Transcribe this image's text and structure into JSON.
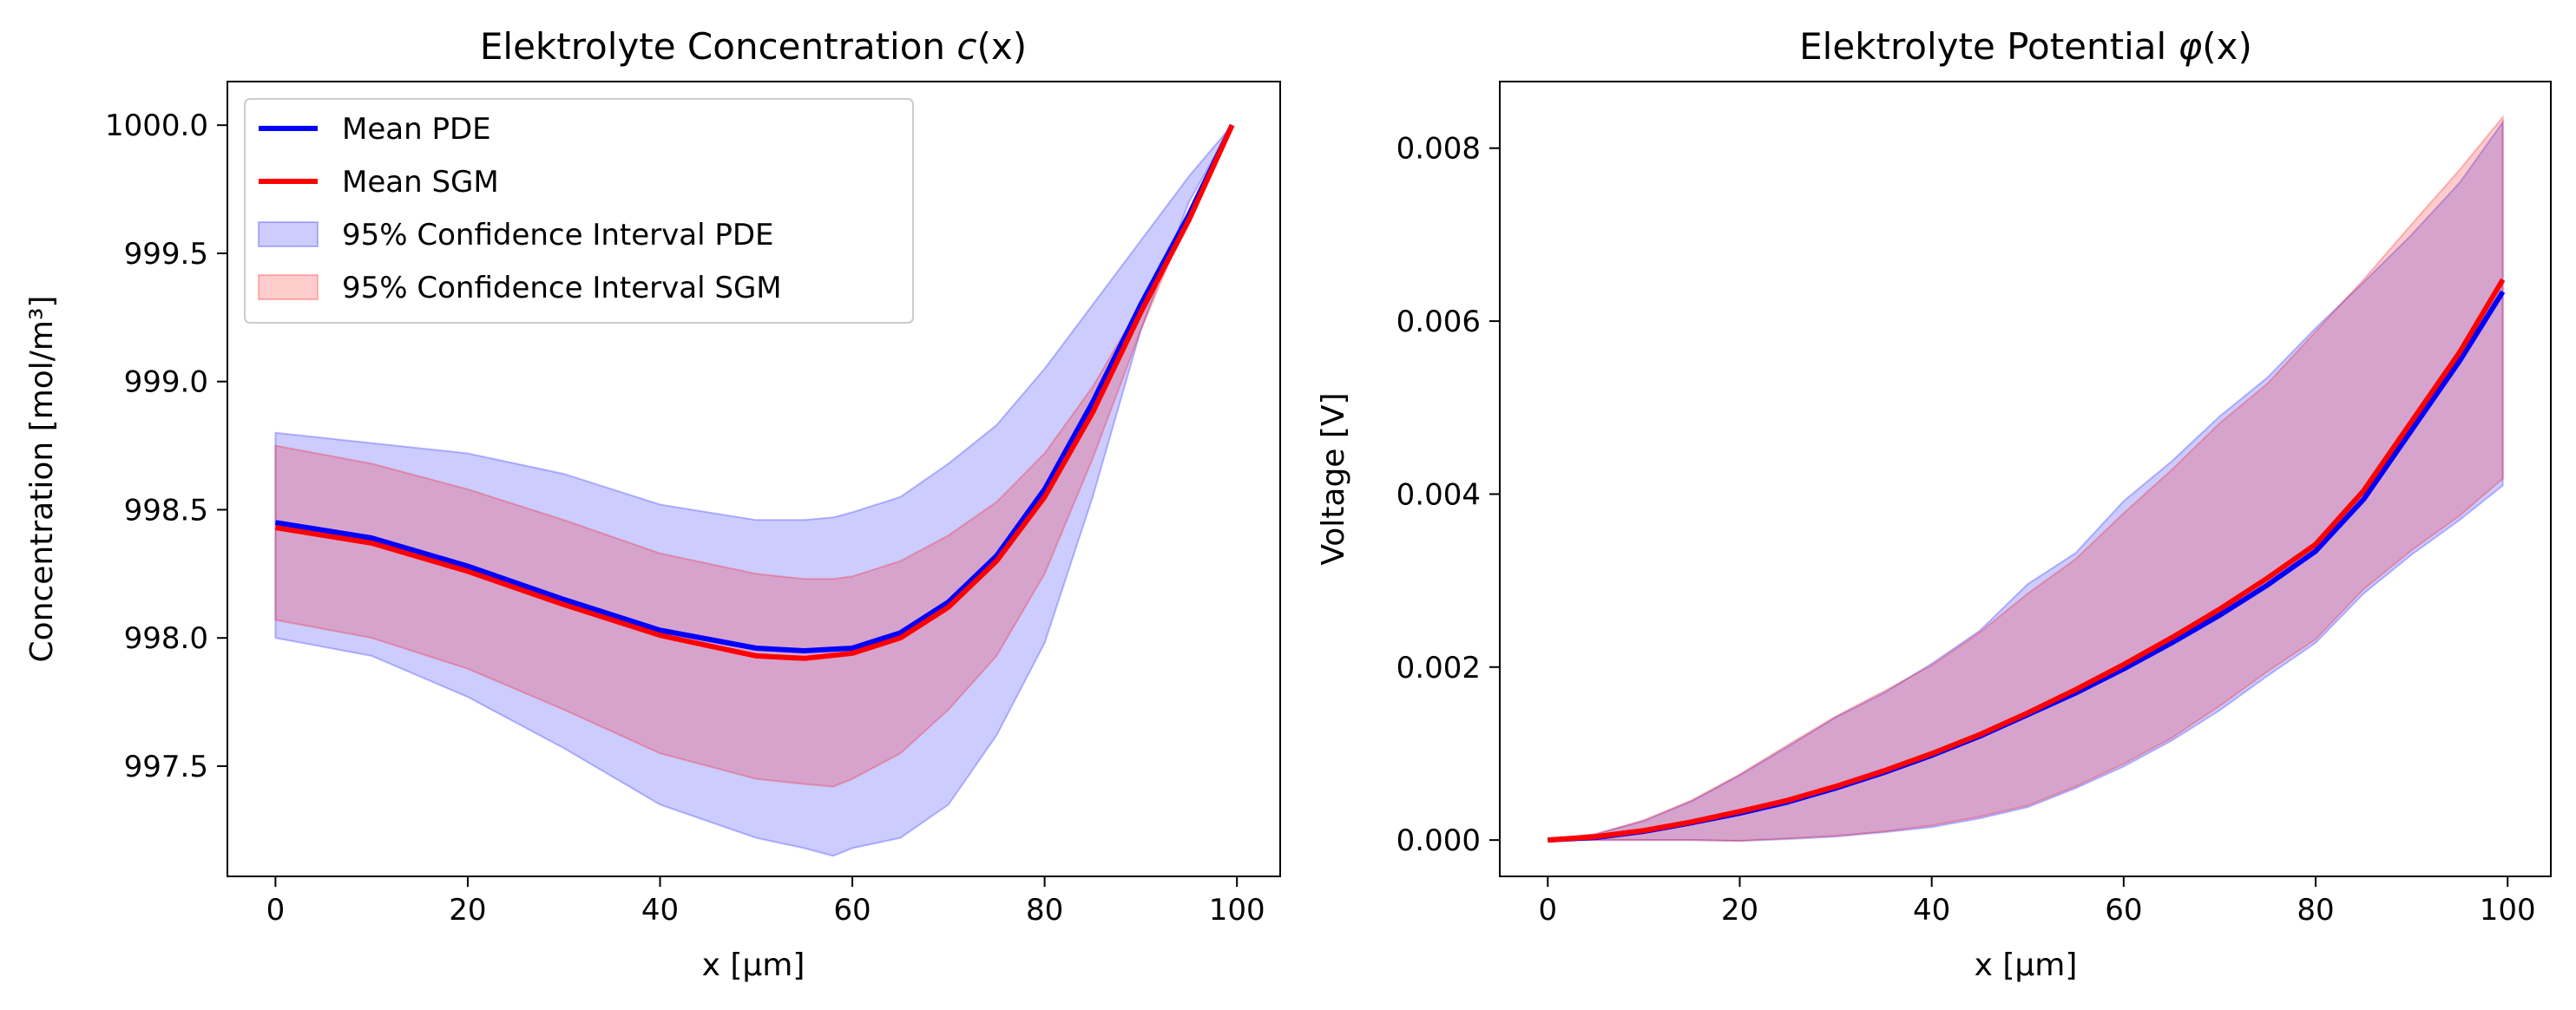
{
  "colors": {
    "pde": "#0000ff",
    "sgm": "#ff0000",
    "pde_band": "#0000ff",
    "sgm_band": "#ff0000"
  },
  "chart_data": [
    {
      "type": "line",
      "title_text": "Elektrolyte Concentration ",
      "title_symbol": "c",
      "title_arg": "(x)",
      "xlabel": "x [µm]",
      "ylabel": "Concentration [mol/m³]",
      "xlim": [
        -5,
        104.5
      ],
      "ylim": [
        997.07,
        1000.17
      ],
      "xticks": [
        0,
        20,
        40,
        60,
        80,
        100
      ],
      "yticks": [
        997.5,
        998.0,
        998.5,
        999.0,
        999.5,
        1000.0
      ],
      "ytick_labels": [
        "997.5",
        "998.0",
        "998.5",
        "999.0",
        "999.5",
        "1000.0"
      ],
      "legend_position": "upper-left",
      "series": [
        {
          "name": "Mean PDE",
          "kind": "line",
          "x": [
            0,
            10,
            20,
            30,
            40,
            50,
            55,
            60,
            65,
            70,
            75,
            80,
            85,
            90,
            95,
            99.5
          ],
          "y": [
            998.45,
            998.39,
            998.28,
            998.15,
            998.03,
            997.96,
            997.95,
            997.96,
            998.02,
            998.14,
            998.32,
            998.58,
            998.92,
            999.3,
            999.65,
            1000.0
          ]
        },
        {
          "name": "Mean SGM",
          "kind": "line",
          "x": [
            0,
            10,
            20,
            30,
            40,
            50,
            55,
            60,
            65,
            70,
            75,
            80,
            85,
            90,
            95,
            99.5
          ],
          "y": [
            998.43,
            998.37,
            998.26,
            998.13,
            998.01,
            997.93,
            997.92,
            997.94,
            998.0,
            998.12,
            998.3,
            998.55,
            998.88,
            999.27,
            999.63,
            1000.0
          ]
        },
        {
          "name": "95% Confidence Interval PDE",
          "kind": "band",
          "x": [
            0,
            10,
            20,
            30,
            40,
            50,
            55,
            58,
            60,
            65,
            70,
            75,
            80,
            85,
            90,
            95,
            99.5
          ],
          "lower": [
            998.0,
            997.93,
            997.77,
            997.57,
            997.35,
            997.22,
            997.18,
            997.15,
            997.18,
            997.22,
            997.35,
            997.62,
            997.98,
            998.55,
            999.2,
            999.7,
            1000.0
          ],
          "upper": [
            998.8,
            998.76,
            998.72,
            998.64,
            998.52,
            998.46,
            998.46,
            998.47,
            998.49,
            998.55,
            998.68,
            998.83,
            999.05,
            999.3,
            999.55,
            999.8,
            1000.0
          ]
        },
        {
          "name": "95% Confidence Interval SGM",
          "kind": "band",
          "x": [
            0,
            10,
            20,
            30,
            40,
            50,
            55,
            58,
            60,
            65,
            70,
            75,
            80,
            85,
            90,
            95,
            99.5
          ],
          "lower": [
            998.07,
            998.0,
            997.88,
            997.72,
            997.55,
            997.45,
            997.43,
            997.42,
            997.45,
            997.55,
            997.72,
            997.93,
            998.25,
            998.7,
            999.2,
            999.65,
            1000.0
          ],
          "upper": [
            998.75,
            998.68,
            998.58,
            998.46,
            998.33,
            998.25,
            998.23,
            998.23,
            998.24,
            998.3,
            998.4,
            998.53,
            998.72,
            998.98,
            999.3,
            999.65,
            1000.0
          ]
        }
      ]
    },
    {
      "type": "line",
      "title_text": "Elektrolyte Potential ",
      "title_symbol": "φ",
      "title_arg": "(x)",
      "xlabel": "x [µm]",
      "ylabel": "Voltage [V]",
      "xlim": [
        -5,
        104.5
      ],
      "ylim": [
        -0.00042,
        0.00877
      ],
      "xticks": [
        0,
        20,
        40,
        60,
        80,
        100
      ],
      "yticks": [
        0.0,
        0.002,
        0.004,
        0.006,
        0.008
      ],
      "ytick_labels": [
        "0.000",
        "0.002",
        "0.004",
        "0.006",
        "0.008"
      ],
      "series": [
        {
          "name": "Mean PDE",
          "kind": "line",
          "x": [
            0,
            5,
            10,
            15,
            20,
            25,
            30,
            35,
            40,
            45,
            50,
            55,
            60,
            65,
            70,
            75,
            80,
            85,
            90,
            95,
            99.5
          ],
          "y": [
            0.0,
            3e-05,
            0.0001,
            0.0002,
            0.00031,
            0.00044,
            0.0006,
            0.00078,
            0.00098,
            0.0012,
            0.00145,
            0.0017,
            0.00198,
            0.00228,
            0.0026,
            0.00295,
            0.00334,
            0.00394,
            0.00474,
            0.00554,
            0.00634
          ]
        },
        {
          "name": "Mean SGM",
          "kind": "line",
          "x": [
            0,
            5,
            10,
            15,
            20,
            25,
            30,
            35,
            40,
            45,
            50,
            55,
            60,
            65,
            70,
            75,
            80,
            85,
            90,
            95,
            99.5
          ],
          "y": [
            0.0,
            4e-05,
            0.00011,
            0.00021,
            0.00033,
            0.00046,
            0.00062,
            0.0008,
            0.001,
            0.00122,
            0.00147,
            0.00174,
            0.00203,
            0.00234,
            0.00267,
            0.00303,
            0.00342,
            0.00404,
            0.00484,
            0.00564,
            0.00648
          ]
        },
        {
          "name": "95% Confidence Interval PDE",
          "kind": "band",
          "x": [
            0,
            5,
            10,
            15,
            20,
            25,
            30,
            35,
            40,
            45,
            50,
            55,
            60,
            65,
            70,
            75,
            80,
            85,
            90,
            95,
            99.5
          ],
          "lower": [
            0.0,
            0.0,
            0.0,
            0.0,
            -1e-05,
            1e-05,
            4e-05,
            9e-05,
            0.00015,
            0.00025,
            0.00038,
            0.0006,
            0.00085,
            0.00115,
            0.0015,
            0.0019,
            0.00228,
            0.00285,
            0.0033,
            0.0037,
            0.0041
          ],
          "upper": [
            0.0,
            7e-05,
            0.00022,
            0.00045,
            0.00075,
            0.00108,
            0.00142,
            0.0017,
            0.00204,
            0.00242,
            0.00296,
            0.00332,
            0.00392,
            0.00438,
            0.0049,
            0.00535,
            0.00592,
            0.00645,
            0.007,
            0.0076,
            0.0083
          ]
        },
        {
          "name": "95% Confidence Interval SGM",
          "kind": "band",
          "x": [
            0,
            5,
            10,
            15,
            20,
            25,
            30,
            35,
            40,
            45,
            50,
            55,
            60,
            65,
            70,
            75,
            80,
            85,
            90,
            95,
            99.5
          ],
          "lower": [
            0.0,
            0.0,
            0.0,
            0.0,
            -1e-05,
            2e-05,
            5e-05,
            0.0001,
            0.00017,
            0.00027,
            0.0004,
            0.00062,
            0.00088,
            0.00118,
            0.00155,
            0.00195,
            0.00232,
            0.0029,
            0.00335,
            0.00375,
            0.00418
          ],
          "upper": [
            0.0,
            7e-05,
            0.00023,
            0.00046,
            0.00076,
            0.0011,
            0.00143,
            0.00172,
            0.00202,
            0.0024,
            0.00285,
            0.00325,
            0.00378,
            0.00428,
            0.00482,
            0.00528,
            0.00588,
            0.00648,
            0.00712,
            0.00775,
            0.00836
          ]
        }
      ]
    }
  ]
}
